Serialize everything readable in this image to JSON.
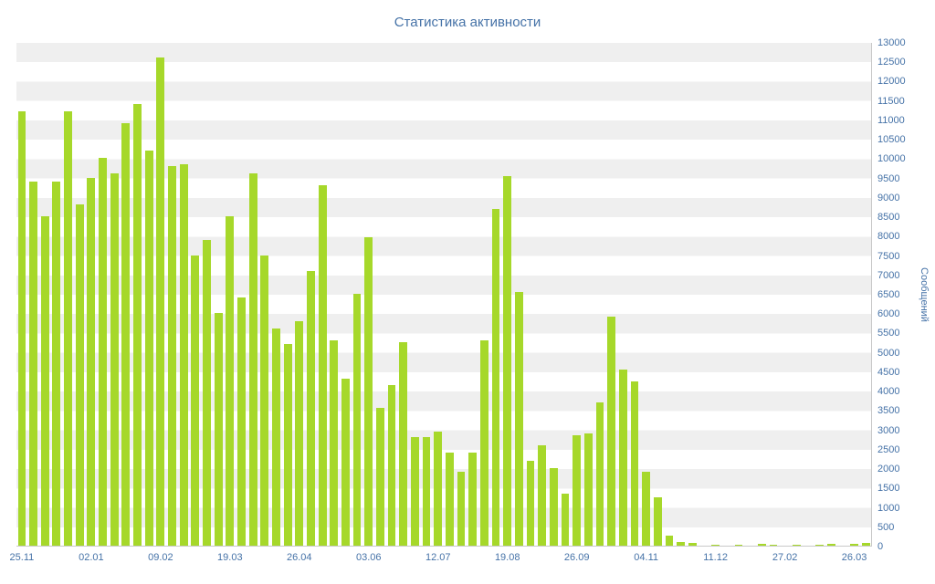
{
  "chart": {
    "colors": {
      "bar": "#a6d82a",
      "stripe": "#efefef",
      "axis_line": "#c9c9c9",
      "axis_text": "#4572a7",
      "title_text": "#4572a7"
    }
  },
  "chart_data": {
    "type": "bar",
    "title": "Статистика активности",
    "xlabel": "",
    "ylabel": "Сообщений",
    "ylim": [
      0,
      13000
    ],
    "y_tick_step": 500,
    "grid": "alternating-bands",
    "legend": "none",
    "x_tick_labels": [
      "25.11",
      "02.01",
      "09.02",
      "19.03",
      "26.04",
      "03.06",
      "12.07",
      "19.08",
      "26.09",
      "04.11",
      "11.12",
      "27.02",
      "26.03"
    ],
    "x_tick_every": 6,
    "values": [
      11200,
      9400,
      8500,
      9400,
      11200,
      8800,
      9500,
      10000,
      9600,
      10900,
      11400,
      10200,
      12600,
      9800,
      9850,
      7500,
      7900,
      6000,
      8500,
      6400,
      9600,
      7500,
      5600,
      5200,
      5800,
      7100,
      9300,
      5300,
      4300,
      6500,
      7950,
      3550,
      4150,
      5250,
      2800,
      2800,
      2950,
      2400,
      1900,
      2400,
      5300,
      8700,
      9550,
      6550,
      2200,
      2600,
      2000,
      1350,
      2850,
      2900,
      3700,
      5900,
      4550,
      4250,
      1900,
      1250,
      250,
      100,
      60,
      0,
      20,
      0,
      30,
      0,
      40,
      30,
      0,
      30,
      0,
      30,
      50,
      0,
      40,
      70
    ]
  }
}
